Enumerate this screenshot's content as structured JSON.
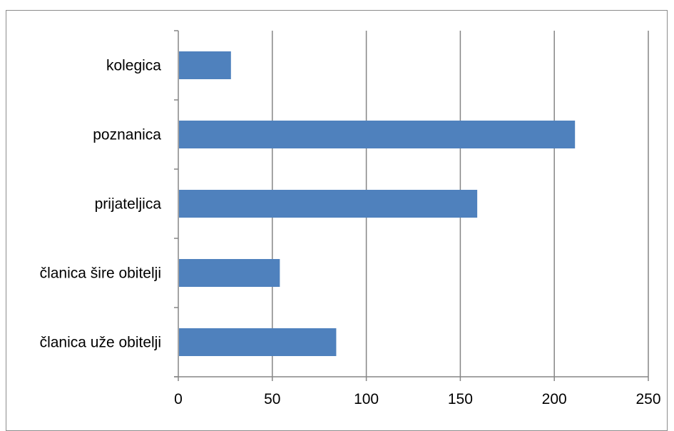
{
  "chart_data": {
    "type": "bar",
    "orientation": "horizontal",
    "categories": [
      "kolegica",
      "poznanica",
      "prijateljica",
      "članica šire obitelji",
      "članica uže obitelji"
    ],
    "values": [
      28,
      211,
      159,
      54,
      84
    ],
    "title": "",
    "xlabel": "",
    "ylabel": "",
    "xlim": [
      0,
      250
    ],
    "xticks": [
      "0",
      "50",
      "100",
      "150",
      "200",
      "250"
    ],
    "grid": "vertical",
    "legend": "none",
    "bar_color": "#4f81bd",
    "grid_color": "#868686",
    "axis_color": "#868686"
  }
}
